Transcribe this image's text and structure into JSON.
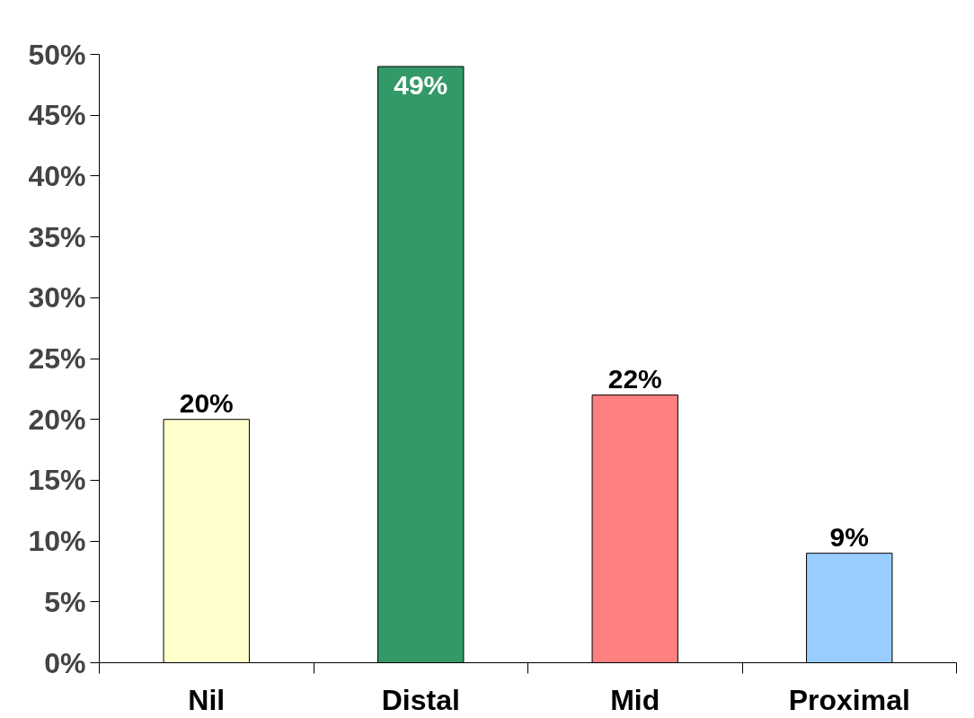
{
  "chart_data": {
    "type": "bar",
    "categories": [
      "Nil",
      "Distal",
      "Mid",
      "Proximal"
    ],
    "values": [
      20,
      49,
      22,
      9
    ],
    "colors": [
      "#ffffcc",
      "#339966",
      "#ff8080",
      "#99ccff"
    ],
    "value_labels": [
      "20%",
      "49%",
      "22%",
      "9%"
    ],
    "ylim": [
      0,
      50
    ],
    "yticks": [
      {
        "value": 0,
        "label": "0%"
      },
      {
        "value": 5,
        "label": "5%"
      },
      {
        "value": 10,
        "label": "10%"
      },
      {
        "value": 15,
        "label": "15%"
      },
      {
        "value": 20,
        "label": "20%"
      },
      {
        "value": 25,
        "label": "25%"
      },
      {
        "value": 30,
        "label": "30%"
      },
      {
        "value": 35,
        "label": "35%"
      },
      {
        "value": 40,
        "label": "40%"
      },
      {
        "value": 45,
        "label": "45%"
      },
      {
        "value": 50,
        "label": "50%"
      }
    ],
    "grid": false
  }
}
